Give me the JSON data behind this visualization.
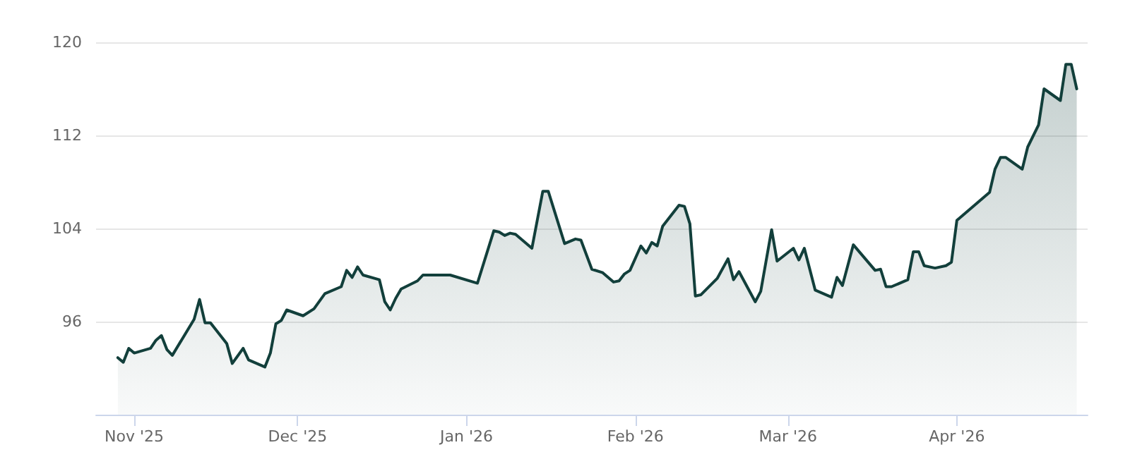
{
  "chart_data": {
    "type": "area",
    "x": [
      "2025-10-29",
      "2025-10-30",
      "2025-10-31",
      "2025-11-01",
      "2025-11-04",
      "2025-11-05",
      "2025-11-06",
      "2025-11-07",
      "2025-11-08",
      "2025-11-12",
      "2025-11-13",
      "2025-11-14",
      "2025-11-15",
      "2025-11-18",
      "2025-11-19",
      "2025-11-21",
      "2025-11-22",
      "2025-11-25",
      "2025-11-26",
      "2025-11-27",
      "2025-11-28",
      "2025-11-29",
      "2025-12-02",
      "2025-12-04",
      "2025-12-06",
      "2025-12-09",
      "2025-12-10",
      "2025-12-11",
      "2025-12-12",
      "2025-12-13",
      "2025-12-16",
      "2025-12-17",
      "2025-12-18",
      "2025-12-19",
      "2025-12-20",
      "2025-12-23",
      "2025-12-24",
      "2025-12-27",
      "2025-12-29",
      "2026-01-03",
      "2026-01-06",
      "2026-01-07",
      "2026-01-08",
      "2026-01-09",
      "2026-01-10",
      "2026-01-13",
      "2026-01-15",
      "2026-01-16",
      "2026-01-19",
      "2026-01-21",
      "2026-01-22",
      "2026-01-24",
      "2026-01-26",
      "2026-01-28",
      "2026-01-29",
      "2026-01-30",
      "2026-01-31",
      "2026-02-02",
      "2026-02-03",
      "2026-02-04",
      "2026-02-05",
      "2026-02-06",
      "2026-02-09",
      "2026-02-10",
      "2026-02-11",
      "2026-02-12",
      "2026-02-13",
      "2026-02-16",
      "2026-02-18",
      "2026-02-19",
      "2026-02-20",
      "2026-02-23",
      "2026-02-24",
      "2026-02-26",
      "2026-02-27",
      "2026-03-02",
      "2026-03-03",
      "2026-03-04",
      "2026-03-06",
      "2026-03-09",
      "2026-03-10",
      "2026-03-11",
      "2026-03-13",
      "2026-03-17",
      "2026-03-18",
      "2026-03-19",
      "2026-03-20",
      "2026-03-23",
      "2026-03-24",
      "2026-03-25",
      "2026-03-26",
      "2026-03-28",
      "2026-03-30",
      "2026-03-31",
      "2026-04-01",
      "2026-04-07",
      "2026-04-08",
      "2026-04-09",
      "2026-04-10",
      "2026-04-13",
      "2026-04-14",
      "2026-04-16",
      "2026-04-17",
      "2026-04-20",
      "2026-04-21",
      "2026-04-22",
      "2026-04-23"
    ],
    "series": [
      {
        "color": "#123f3b",
        "values": [
          92.9,
          92.5,
          93.7,
          93.3,
          93.7,
          94.4,
          94.8,
          93.6,
          93.1,
          96.2,
          97.9,
          95.9,
          95.9,
          94.1,
          92.4,
          93.7,
          92.7,
          92.1,
          93.3,
          95.8,
          96.1,
          97.0,
          96.5,
          97.1,
          98.4,
          99.0,
          100.4,
          99.8,
          100.7,
          100.0,
          99.6,
          97.7,
          97.0,
          98.0,
          98.8,
          99.5,
          100.0,
          100.0,
          100.0,
          99.3,
          103.8,
          103.7,
          103.4,
          103.6,
          103.5,
          102.3,
          107.2,
          107.2,
          102.7,
          103.1,
          103.0,
          100.5,
          100.2,
          99.4,
          99.5,
          100.1,
          100.4,
          102.5,
          101.9,
          102.8,
          102.5,
          104.2,
          106.0,
          105.9,
          104.4,
          98.2,
          98.3,
          99.7,
          101.4,
          99.6,
          100.3,
          97.7,
          98.6,
          103.9,
          101.2,
          102.3,
          101.3,
          102.3,
          98.7,
          98.1,
          99.8,
          99.1,
          102.6,
          100.4,
          100.5,
          99.0,
          99.0,
          99.6,
          102.0,
          102.0,
          100.8,
          100.6,
          100.8,
          101.1,
          104.7,
          107.1,
          109.1,
          110.1,
          110.1,
          109.1,
          111.0,
          112.9,
          116.0,
          115.0,
          118.1,
          118.1,
          116.0
        ]
      }
    ],
    "xlim": [
      "2025-10-25",
      "2026-04-25"
    ],
    "xticks": [
      {
        "value": "2025-11-01",
        "label": "Nov '25"
      },
      {
        "value": "2025-12-01",
        "label": "Dec '25"
      },
      {
        "value": "2026-01-01",
        "label": "Jan '26"
      },
      {
        "value": "2026-02-01",
        "label": "Feb '26"
      },
      {
        "value": "2026-03-01",
        "label": "Mar '26"
      },
      {
        "value": "2026-04-01",
        "label": "Apr '26"
      }
    ],
    "ylim": [
      88,
      120
    ],
    "yticks": [
      96,
      104,
      112,
      120
    ],
    "grid": "y"
  }
}
